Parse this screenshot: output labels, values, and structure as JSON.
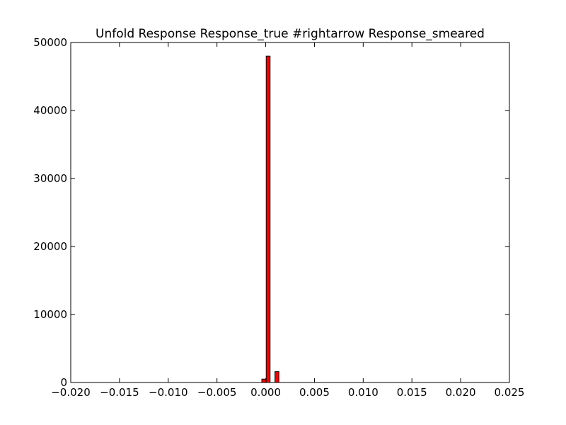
{
  "chart_data": {
    "type": "bar",
    "title": "Unfold Response Response_true #rightarrow Response_smeared",
    "xlabel": "",
    "ylabel": "",
    "xlim": [
      -0.02,
      0.025
    ],
    "ylim": [
      0,
      50000
    ],
    "xticks": [
      -0.02,
      -0.015,
      -0.01,
      -0.005,
      0.0,
      0.005,
      0.01,
      0.015,
      0.02,
      0.025
    ],
    "xtick_labels": [
      "−0.020",
      "−0.015",
      "−0.010",
      "−0.005",
      "0.000",
      "0.005",
      "0.010",
      "0.015",
      "0.020",
      "0.025"
    ],
    "yticks": [
      0,
      10000,
      20000,
      30000,
      40000,
      50000
    ],
    "ytick_labels": [
      "0",
      "10000",
      "20000",
      "30000",
      "40000",
      "50000"
    ],
    "bar_color": "#ff0000",
    "bar_edge_color": "#000000",
    "bars": [
      {
        "x0": -0.0004,
        "x1": 0.0,
        "value": 500
      },
      {
        "x0": 5e-05,
        "x1": 0.00045,
        "value": 48000
      },
      {
        "x0": 0.0005,
        "x1": 0.0009,
        "value": 0
      },
      {
        "x0": 0.00095,
        "x1": 0.00135,
        "value": 1600
      }
    ],
    "grid": false,
    "legend": "none"
  }
}
